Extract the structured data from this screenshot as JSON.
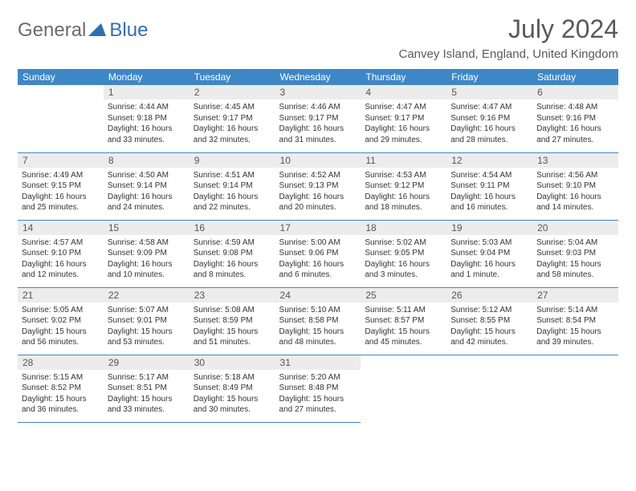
{
  "logo": {
    "part1": "General",
    "part2": "Blue"
  },
  "title": "July 2024",
  "location": "Canvey Island, England, United Kingdom",
  "colors": {
    "headerBg": "#3e87c6",
    "headerText": "#ffffff",
    "dayNumBg": "#ececec",
    "borderColor": "#3e87c6",
    "logoGray": "#6b6b6b",
    "logoBlue": "#2f6fb0",
    "titleColor": "#595959"
  },
  "weekdays": [
    "Sunday",
    "Monday",
    "Tuesday",
    "Wednesday",
    "Thursday",
    "Friday",
    "Saturday"
  ],
  "weeks": [
    [
      null,
      {
        "n": "1",
        "sr": "4:44 AM",
        "ss": "9:18 PM",
        "dl": "16 hours and 33 minutes."
      },
      {
        "n": "2",
        "sr": "4:45 AM",
        "ss": "9:17 PM",
        "dl": "16 hours and 32 minutes."
      },
      {
        "n": "3",
        "sr": "4:46 AM",
        "ss": "9:17 PM",
        "dl": "16 hours and 31 minutes."
      },
      {
        "n": "4",
        "sr": "4:47 AM",
        "ss": "9:17 PM",
        "dl": "16 hours and 29 minutes."
      },
      {
        "n": "5",
        "sr": "4:47 AM",
        "ss": "9:16 PM",
        "dl": "16 hours and 28 minutes."
      },
      {
        "n": "6",
        "sr": "4:48 AM",
        "ss": "9:16 PM",
        "dl": "16 hours and 27 minutes."
      }
    ],
    [
      {
        "n": "7",
        "sr": "4:49 AM",
        "ss": "9:15 PM",
        "dl": "16 hours and 25 minutes."
      },
      {
        "n": "8",
        "sr": "4:50 AM",
        "ss": "9:14 PM",
        "dl": "16 hours and 24 minutes."
      },
      {
        "n": "9",
        "sr": "4:51 AM",
        "ss": "9:14 PM",
        "dl": "16 hours and 22 minutes."
      },
      {
        "n": "10",
        "sr": "4:52 AM",
        "ss": "9:13 PM",
        "dl": "16 hours and 20 minutes."
      },
      {
        "n": "11",
        "sr": "4:53 AM",
        "ss": "9:12 PM",
        "dl": "16 hours and 18 minutes."
      },
      {
        "n": "12",
        "sr": "4:54 AM",
        "ss": "9:11 PM",
        "dl": "16 hours and 16 minutes."
      },
      {
        "n": "13",
        "sr": "4:56 AM",
        "ss": "9:10 PM",
        "dl": "16 hours and 14 minutes."
      }
    ],
    [
      {
        "n": "14",
        "sr": "4:57 AM",
        "ss": "9:10 PM",
        "dl": "16 hours and 12 minutes."
      },
      {
        "n": "15",
        "sr": "4:58 AM",
        "ss": "9:09 PM",
        "dl": "16 hours and 10 minutes."
      },
      {
        "n": "16",
        "sr": "4:59 AM",
        "ss": "9:08 PM",
        "dl": "16 hours and 8 minutes."
      },
      {
        "n": "17",
        "sr": "5:00 AM",
        "ss": "9:06 PM",
        "dl": "16 hours and 6 minutes."
      },
      {
        "n": "18",
        "sr": "5:02 AM",
        "ss": "9:05 PM",
        "dl": "16 hours and 3 minutes."
      },
      {
        "n": "19",
        "sr": "5:03 AM",
        "ss": "9:04 PM",
        "dl": "16 hours and 1 minute."
      },
      {
        "n": "20",
        "sr": "5:04 AM",
        "ss": "9:03 PM",
        "dl": "15 hours and 58 minutes."
      }
    ],
    [
      {
        "n": "21",
        "sr": "5:05 AM",
        "ss": "9:02 PM",
        "dl": "15 hours and 56 minutes."
      },
      {
        "n": "22",
        "sr": "5:07 AM",
        "ss": "9:01 PM",
        "dl": "15 hours and 53 minutes."
      },
      {
        "n": "23",
        "sr": "5:08 AM",
        "ss": "8:59 PM",
        "dl": "15 hours and 51 minutes."
      },
      {
        "n": "24",
        "sr": "5:10 AM",
        "ss": "8:58 PM",
        "dl": "15 hours and 48 minutes."
      },
      {
        "n": "25",
        "sr": "5:11 AM",
        "ss": "8:57 PM",
        "dl": "15 hours and 45 minutes."
      },
      {
        "n": "26",
        "sr": "5:12 AM",
        "ss": "8:55 PM",
        "dl": "15 hours and 42 minutes."
      },
      {
        "n": "27",
        "sr": "5:14 AM",
        "ss": "8:54 PM",
        "dl": "15 hours and 39 minutes."
      }
    ],
    [
      {
        "n": "28",
        "sr": "5:15 AM",
        "ss": "8:52 PM",
        "dl": "15 hours and 36 minutes."
      },
      {
        "n": "29",
        "sr": "5:17 AM",
        "ss": "8:51 PM",
        "dl": "15 hours and 33 minutes."
      },
      {
        "n": "30",
        "sr": "5:18 AM",
        "ss": "8:49 PM",
        "dl": "15 hours and 30 minutes."
      },
      {
        "n": "31",
        "sr": "5:20 AM",
        "ss": "8:48 PM",
        "dl": "15 hours and 27 minutes."
      },
      null,
      null,
      null
    ]
  ],
  "labels": {
    "sunrise": "Sunrise:",
    "sunset": "Sunset:",
    "daylight": "Daylight:"
  }
}
